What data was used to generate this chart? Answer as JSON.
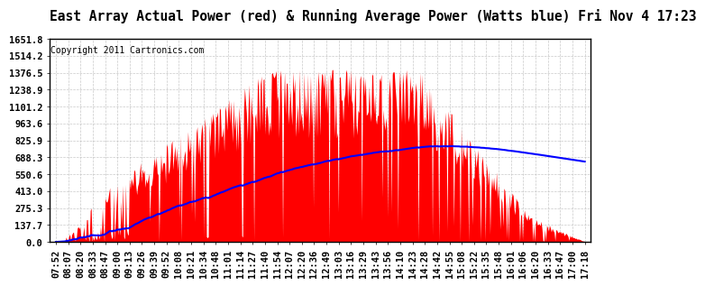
{
  "title": "East Array Actual Power (red) & Running Average Power (Watts blue) Fri Nov 4 17:23",
  "copyright": "Copyright 2011 Cartronics.com",
  "yticks": [
    0.0,
    137.7,
    275.3,
    413.0,
    550.6,
    688.3,
    825.9,
    963.6,
    1101.2,
    1238.9,
    1376.5,
    1514.2,
    1651.8
  ],
  "ymax": 1651.8,
  "ymin": 0.0,
  "bg_color": "#ffffff",
  "grid_color": "#bbbbbb",
  "fill_color": "#ff0000",
  "avg_color": "#0000ff",
  "title_fontsize": 10.5,
  "copyright_fontsize": 7,
  "tick_fontsize": 7.5,
  "time_labels": [
    "07:52",
    "08:07",
    "08:20",
    "08:33",
    "08:47",
    "09:00",
    "09:13",
    "09:26",
    "09:39",
    "09:52",
    "10:08",
    "10:21",
    "10:34",
    "10:48",
    "11:01",
    "11:14",
    "11:27",
    "11:40",
    "11:54",
    "12:07",
    "12:20",
    "12:36",
    "12:49",
    "13:03",
    "13:16",
    "13:29",
    "13:43",
    "13:56",
    "14:10",
    "14:23",
    "14:28",
    "14:42",
    "14:55",
    "15:08",
    "15:22",
    "15:35",
    "15:48",
    "16:01",
    "16:06",
    "16:20",
    "16:33",
    "16:47",
    "17:00",
    "17:18"
  ]
}
